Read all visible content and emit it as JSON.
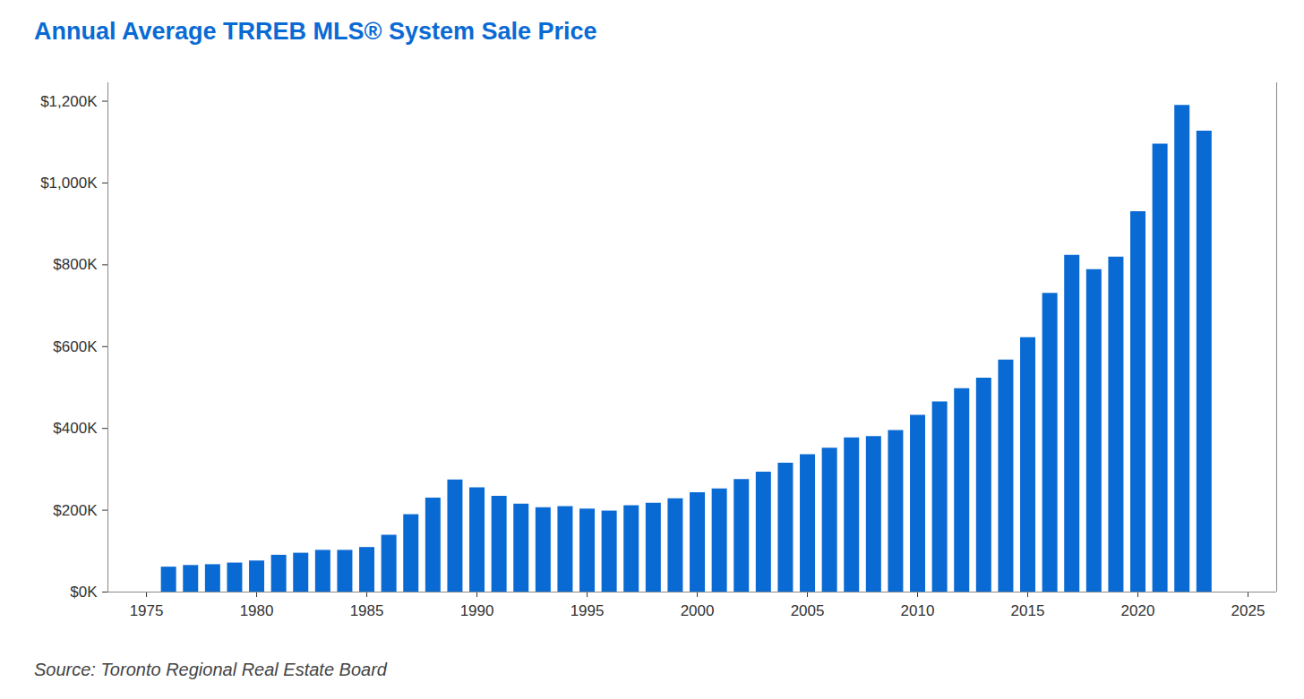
{
  "chart_data": {
    "type": "bar",
    "title": "Annual Average TRREB MLS® System Sale Price",
    "caption": "Source: Toronto Regional Real Estate Board",
    "x": [
      1976,
      1977,
      1978,
      1979,
      1980,
      1981,
      1982,
      1983,
      1984,
      1985,
      1986,
      1987,
      1988,
      1989,
      1990,
      1991,
      1992,
      1993,
      1994,
      1995,
      1996,
      1997,
      1998,
      1999,
      2000,
      2001,
      2002,
      2003,
      2004,
      2005,
      2006,
      2007,
      2008,
      2009,
      2010,
      2011,
      2012,
      2013,
      2014,
      2015,
      2016,
      2017,
      2018,
      2019,
      2020,
      2021,
      2022,
      2023
    ],
    "values": [
      61000,
      65000,
      67000,
      71000,
      76000,
      90000,
      95000,
      102000,
      102000,
      109000,
      139000,
      189000,
      230000,
      274000,
      255000,
      234000,
      215000,
      206000,
      209000,
      203000,
      198000,
      211000,
      217000,
      228000,
      243000,
      252000,
      275000,
      293000,
      315000,
      336000,
      352000,
      377000,
      380000,
      395000,
      432000,
      465000,
      497000,
      523000,
      567000,
      622000,
      730000,
      823000,
      788000,
      819000,
      930000,
      1095000,
      1190000,
      1127000
    ],
    "color": "#0a6ad4",
    "xlim": [
      1973.25,
      2026.3
    ],
    "xticks": [
      1975,
      1980,
      1985,
      1990,
      1995,
      2000,
      2005,
      2010,
      2015,
      2020,
      2025
    ],
    "ylim": [
      0,
      1245000
    ],
    "yticks": [
      {
        "value": 0,
        "label": "$0K"
      },
      {
        "value": 200000,
        "label": "$200K"
      },
      {
        "value": 400000,
        "label": "$400K"
      },
      {
        "value": 600000,
        "label": "$600K"
      },
      {
        "value": 800000,
        "label": "$800K"
      },
      {
        "value": 1000000,
        "label": "$1,000K"
      },
      {
        "value": 1200000,
        "label": "$1,200K"
      }
    ],
    "grid": false
  }
}
